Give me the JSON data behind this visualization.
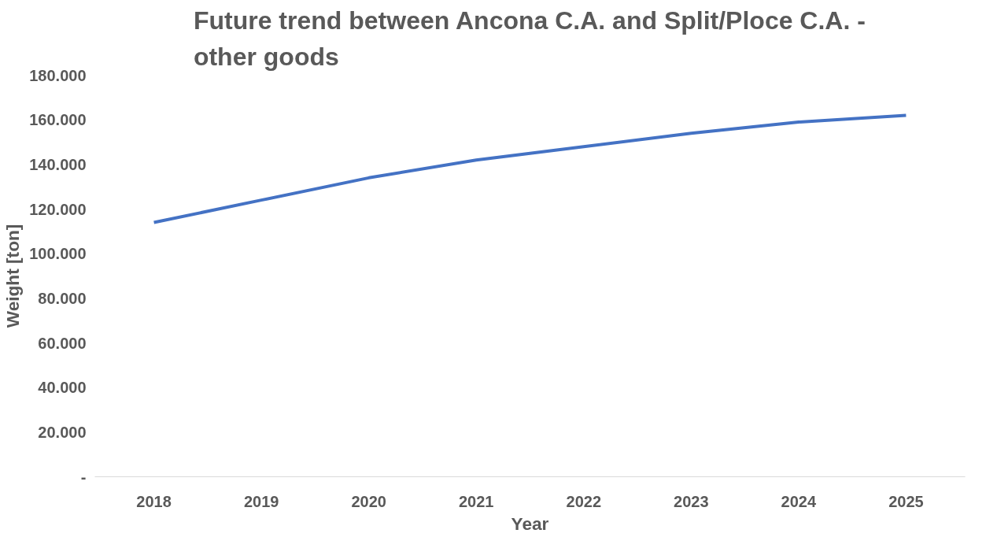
{
  "chart_data": {
    "type": "line",
    "title": "Future trend between Ancona C.A. and Split/Ploce C.A. - other goods",
    "xlabel": "Year",
    "ylabel": "Weight [ton]",
    "categories": [
      "2018",
      "2019",
      "2020",
      "2021",
      "2022",
      "2023",
      "2024",
      "2025"
    ],
    "series": [
      {
        "color": "#4472c4",
        "values": [
          114000,
          124000,
          134000,
          142000,
          148000,
          154000,
          159000,
          162000
        ]
      }
    ],
    "ylim": [
      0,
      180000
    ],
    "yticks": [
      {
        "value": 0,
        "label": "-"
      },
      {
        "value": 20000,
        "label": "20.000"
      },
      {
        "value": 40000,
        "label": "40.000"
      },
      {
        "value": 60000,
        "label": "60.000"
      },
      {
        "value": 80000,
        "label": "80.000"
      },
      {
        "value": 100000,
        "label": "100.000"
      },
      {
        "value": 120000,
        "label": "120.000"
      },
      {
        "value": 140000,
        "label": "140.000"
      },
      {
        "value": 160000,
        "label": "160.000"
      },
      {
        "value": 180000,
        "label": "180.000"
      }
    ],
    "grid": false,
    "marker": "none",
    "line_style": "solid"
  }
}
